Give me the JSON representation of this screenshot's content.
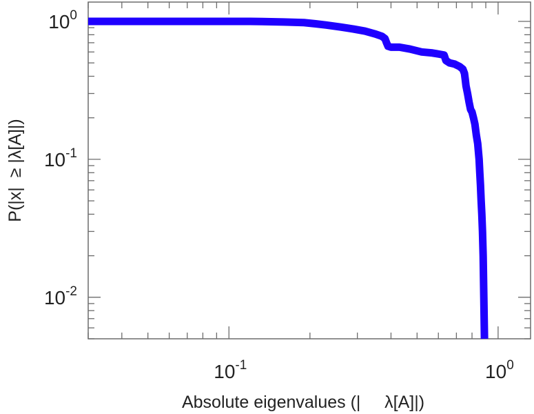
{
  "chart_data": {
    "type": "line",
    "xlabel": "Absolute eigenvalues (|     λ[A]|)",
    "ylabel": "P(|x|  ≥ |λ[A]|)",
    "x_scale": "log",
    "y_scale": "log",
    "xlim": [
      0.03,
      1.32
    ],
    "ylim": [
      0.005,
      1.38
    ],
    "x_ticks": [
      {
        "base": "10",
        "exp": "-1",
        "value": 0.1
      },
      {
        "base": "10",
        "exp": "0",
        "value": 1.0
      }
    ],
    "y_ticks": [
      {
        "base": "10",
        "exp": "-2",
        "value": 0.01
      },
      {
        "base": "10",
        "exp": "-1",
        "value": 0.1
      },
      {
        "base": "10",
        "exp": "0",
        "value": 1.0
      }
    ],
    "grid": false,
    "line_color": "#1f00ff",
    "series": [
      {
        "x": [
          0.03,
          0.05,
          0.08,
          0.12,
          0.16,
          0.19,
          0.21,
          0.23,
          0.26,
          0.29,
          0.32,
          0.35,
          0.37,
          0.38,
          0.385,
          0.39,
          0.4,
          0.43,
          0.47,
          0.52,
          0.57,
          0.6,
          0.63,
          0.64,
          0.66,
          0.69,
          0.72,
          0.74,
          0.75,
          0.755,
          0.76,
          0.77,
          0.78,
          0.79,
          0.8,
          0.81,
          0.82,
          0.83,
          0.84,
          0.85,
          0.855,
          0.86,
          0.865,
          0.87,
          0.875,
          0.88,
          0.885,
          0.89
        ],
        "y": [
          1.0,
          1.0,
          1.0,
          1.0,
          0.99,
          0.98,
          0.96,
          0.94,
          0.91,
          0.88,
          0.85,
          0.81,
          0.78,
          0.75,
          0.7,
          0.66,
          0.65,
          0.65,
          0.63,
          0.6,
          0.59,
          0.58,
          0.57,
          0.52,
          0.5,
          0.49,
          0.47,
          0.45,
          0.42,
          0.38,
          0.34,
          0.3,
          0.26,
          0.23,
          0.22,
          0.2,
          0.18,
          0.15,
          0.13,
          0.1,
          0.08,
          0.065,
          0.05,
          0.04,
          0.03,
          0.02,
          0.01,
          0.005
        ]
      }
    ]
  }
}
